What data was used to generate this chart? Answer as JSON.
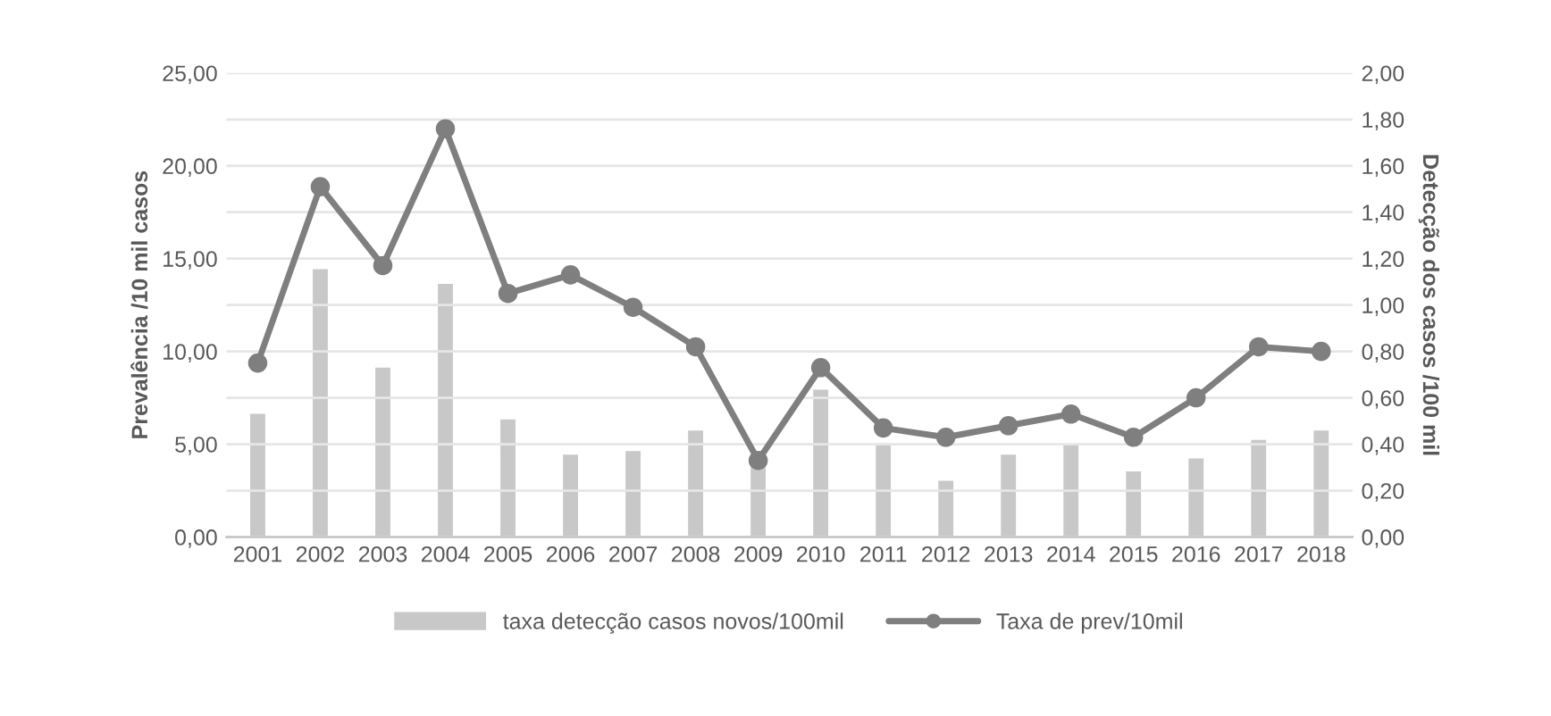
{
  "chart_data": {
    "type": "bar",
    "categories": [
      "2001",
      "2002",
      "2003",
      "2004",
      "2005",
      "2006",
      "2007",
      "2008",
      "2009",
      "2010",
      "2011",
      "2012",
      "2013",
      "2014",
      "2015",
      "2016",
      "2017",
      "2018"
    ],
    "series": [
      {
        "name": "taxa detecção casos novos/100mil",
        "color": "#c8c8c8",
        "values": [
          6.7,
          14.5,
          9.2,
          13.7,
          6.4,
          4.5,
          4.7,
          5.8,
          4.0,
          8.0,
          5.1,
          3.1,
          4.5,
          5.0,
          3.6,
          4.3,
          5.3,
          5.8
        ]
      },
      {
        "name": "Taxa de prev/10mil",
        "type": "line",
        "axis": "y2",
        "color": "#7f7f7f",
        "marker": "circle",
        "values": [
          0.75,
          1.51,
          1.17,
          1.76,
          1.05,
          1.13,
          0.99,
          0.82,
          0.33,
          0.73,
          0.47,
          0.43,
          0.48,
          0.53,
          0.43,
          0.6,
          0.82,
          0.8
        ]
      }
    ],
    "ylabel": "Prevalência /10 mil casos",
    "y2label": "Detecção dos casos /100 mil",
    "ylim": [
      0,
      25
    ],
    "yticks": [
      {
        "value": 0,
        "label": "0,00"
      },
      {
        "value": 5,
        "label": "5,00"
      },
      {
        "value": 10,
        "label": "10,00"
      },
      {
        "value": 15,
        "label": "15,00"
      },
      {
        "value": 20,
        "label": "20,00"
      },
      {
        "value": 25,
        "label": "25,00"
      }
    ],
    "y2lim": [
      0,
      2
    ],
    "y2ticks": [
      {
        "value": 0,
        "label": "0,00"
      },
      {
        "value": 0.2,
        "label": "0,20"
      },
      {
        "value": 0.4,
        "label": "0,40"
      },
      {
        "value": 0.6,
        "label": "0,60"
      },
      {
        "value": 0.8,
        "label": "0,80"
      },
      {
        "value": 1.0,
        "label": "1,00"
      },
      {
        "value": 1.2,
        "label": "1,20"
      },
      {
        "value": 1.4,
        "label": "1,40"
      },
      {
        "value": 1.6,
        "label": "1,60"
      },
      {
        "value": 1.8,
        "label": "1,80"
      },
      {
        "value": 2.0,
        "label": "2,00"
      }
    ],
    "grid": "y2",
    "legend": "bottom"
  }
}
